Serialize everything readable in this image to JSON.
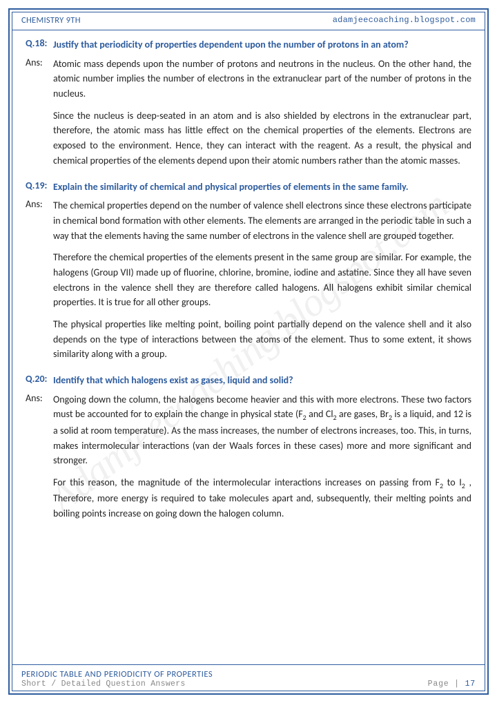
{
  "header": {
    "left": "CHEMISTRY 9TH",
    "right": "adamjeecoaching.blogspot.com"
  },
  "watermark": "Adamjeecoaching.blogspot.com",
  "qa": [
    {
      "qnum": "Q.18:",
      "question": "Justify that periodicity of properties dependent upon the number of protons in an atom?",
      "alabel": "Ans:",
      "paras": [
        "Atomic mass depends upon the number of protons and neutrons in the nucleus. On the other hand, the atomic number implies the number of electrons in the extranuclear part of the number of protons in the nucleus.",
        "Since the nucleus is deep-seated in an atom and is also shielded by electrons in the extranuclear part, therefore, the atomic mass has little effect on the chemical properties of the elements. Electrons are exposed to the environment. Hence, they can interact with the reagent. As a result, the physical and chemical properties of the elements depend upon their atomic numbers rather than the atomic masses."
      ]
    },
    {
      "qnum": "Q.19:",
      "question": "Explain the similarity of chemical and physical properties of elements in the same family.",
      "alabel": "Ans:",
      "paras": [
        "The chemical properties depend on the number of valence shell electrons since these electrons participate in chemical bond formation with other elements. The elements are arranged in the periodic table in such a way that the elements having the same number of electrons in the valence shell are grouped together.",
        "Therefore the chemical properties of the elements present in the same group are similar. For example, the halogens (Group VII) made up of fluorine, chlorine, bromine, iodine and astatine. Since they all have seven electrons in the valence shell they are therefore called halogens. All halogens exhibit similar chemical properties. It is true for all other groups.",
        "The physical properties like melting point, boiling point partially depend on the valence shell and it also depends on the type of interactions between the atoms of the element. Thus to some extent, it shows similarity along with a group."
      ]
    },
    {
      "qnum": "Q.20:",
      "question": "Identify that which halogens exist as gases, liquid and solid?",
      "alabel": "Ans:",
      "paras_html": [
        "Ongoing down the column, the halogens become heavier and this with more electrons. These two factors must be accounted for to explain the change in physical state (F<sub>2</sub> and Cl<sub>2</sub> are gases, Br<sub>2</sub> is a liquid, and 12 is a solid at room temperature). As the mass increases, the number of electrons increases, too. This, in turns, makes intermolecular interactions (van der Waals forces in these cases) more and more significant and stronger.",
        "For this reason, the magnitude of the intermolecular interactions increases on passing from F<sub>2</sub> to I<sub>2</sub> , Therefore, more energy is required to take molecules apart and, subsequently, their melting points and boiling points increase on going down the halogen column."
      ]
    }
  ],
  "footer": {
    "title": "PERIODIC TABLE AND PERIODICITY OF PROPERTIES",
    "subtitle": "Short / Detailed Question Answers",
    "page_label": "Page |",
    "page_num": "17"
  },
  "colors": {
    "accent": "#2e5c9e",
    "text": "#222",
    "muted": "#888",
    "bg": "#ffffff"
  }
}
